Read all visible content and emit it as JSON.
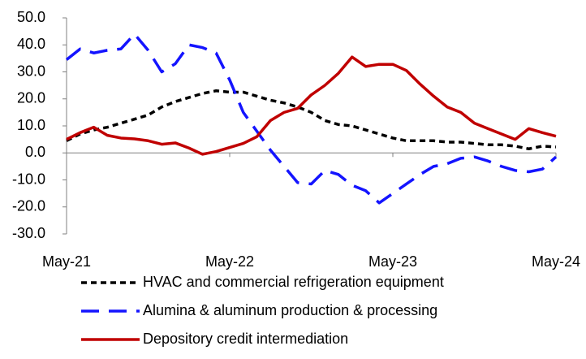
{
  "chart_data": {
    "type": "line",
    "categories": [
      "May-21",
      null,
      null,
      null,
      null,
      null,
      null,
      null,
      null,
      null,
      null,
      null,
      "May-22",
      null,
      null,
      null,
      null,
      null,
      null,
      null,
      null,
      null,
      null,
      null,
      "May-23",
      null,
      null,
      null,
      null,
      null,
      null,
      null,
      null,
      null,
      null,
      null,
      "May-24"
    ],
    "series": [
      {
        "name": "HVAC and commercial refrigeration equipment",
        "color": "#000000",
        "dash": "dotted",
        "values": [
          4.5,
          7,
          8.5,
          9.5,
          11,
          12.5,
          14,
          17,
          19,
          20.5,
          22,
          23,
          22.5,
          22.5,
          21,
          19.5,
          18.5,
          17,
          15,
          12,
          10.5,
          10,
          8.5,
          7,
          5.5,
          4.5,
          4.5,
          4.5,
          4,
          4,
          3.5,
          3,
          3,
          2.5,
          1.5,
          2.5,
          2.2
        ]
      },
      {
        "name": "Alumina & aluminum production & processing",
        "color": "#1414ff",
        "dash": "dashed",
        "values": [
          34.5,
          38.5,
          37,
          38,
          38.5,
          44,
          38,
          30,
          33,
          40,
          39,
          37,
          27,
          15,
          8,
          1,
          -5,
          -11,
          -11.5,
          -6.5,
          -8,
          -12,
          -14,
          -18.5,
          -15,
          -11.5,
          -8,
          -5,
          -4,
          -2,
          -1.5,
          -3,
          -5,
          -6.5,
          -7,
          -6,
          -1.5
        ]
      },
      {
        "name": "Depository credit intermediation",
        "color": "#c00000",
        "dash": "solid",
        "values": [
          5,
          7.5,
          9.5,
          6.5,
          5.5,
          5.2,
          4.5,
          3.2,
          3.7,
          1.8,
          -0.5,
          0.5,
          2,
          3.5,
          6,
          12,
          15,
          16.5,
          21.5,
          25,
          29.5,
          35.5,
          32,
          32.8,
          32.8,
          30.5,
          25.5,
          21,
          17,
          15,
          11,
          9,
          7,
          5,
          9,
          7.5,
          6.2
        ]
      }
    ],
    "ylim": [
      -30,
      50
    ],
    "yticks": [
      {
        "value": -30,
        "label": "-30.0"
      },
      {
        "value": -20,
        "label": "-20.0"
      },
      {
        "value": -10,
        "label": "-10.0"
      },
      {
        "value": 0,
        "label": "0.0"
      },
      {
        "value": 10,
        "label": "10.0"
      },
      {
        "value": 20,
        "label": "20.0"
      },
      {
        "value": 30,
        "label": "30.0"
      },
      {
        "value": 40,
        "label": "40.0"
      },
      {
        "value": 50,
        "label": "50.0"
      }
    ],
    "grid": false,
    "legend": "bottom"
  }
}
